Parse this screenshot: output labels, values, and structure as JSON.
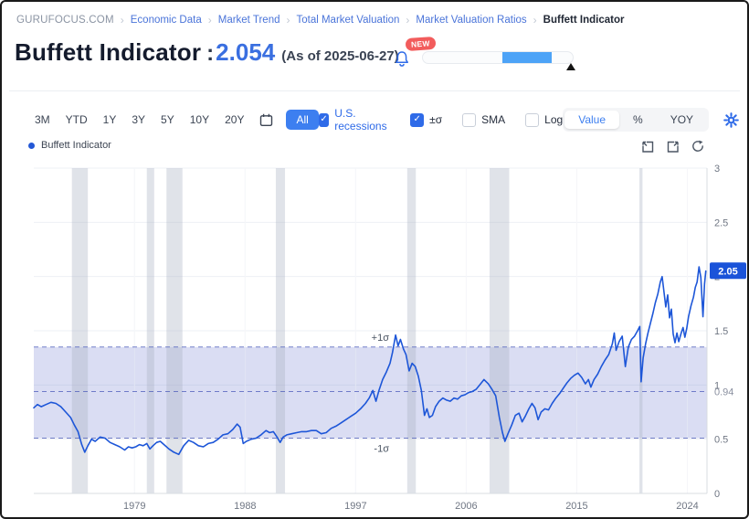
{
  "breadcrumb": {
    "separator": "›",
    "items": [
      {
        "label": "GURUFOCUS.COM"
      },
      {
        "label": "Economic Data"
      },
      {
        "label": "Market Trend"
      },
      {
        "label": "Total Market Valuation"
      },
      {
        "label": "Market Valuation Ratios"
      },
      {
        "label": "Buffett Indicator"
      }
    ]
  },
  "header": {
    "title": "Buffett Indicator",
    "colon": ":",
    "value": "2.054",
    "as_of": "(As of 2025-06-27)",
    "new_badge": "NEW",
    "gauge": {
      "blue_start_pct": 53,
      "blue_end_pct": 86,
      "marker_pct": 95
    }
  },
  "toolbar": {
    "ranges": [
      "3M",
      "YTD",
      "1Y",
      "3Y",
      "5Y",
      "10Y",
      "20Y"
    ],
    "all_label": "All",
    "checkboxes": [
      {
        "label": "U.S. recessions",
        "checked": true
      },
      {
        "label": "±σ",
        "checked": true
      },
      {
        "label": "SMA",
        "checked": false
      },
      {
        "label": "Log",
        "checked": false
      }
    ],
    "modes": [
      {
        "label": "Value",
        "selected": true
      },
      {
        "label": "%",
        "selected": false
      },
      {
        "label": "YOY",
        "selected": false
      }
    ]
  },
  "icons": {
    "check": "✓"
  },
  "legend": {
    "label": "Buffett Indicator",
    "dot_color": "#2458d6"
  },
  "chart_data": {
    "type": "line",
    "title": "Buffett Indicator",
    "x_range": [
      1970.8,
      2025.6
    ],
    "x_ticks": [
      1979,
      1988,
      1997,
      2006,
      2015,
      2024
    ],
    "ylim": [
      0,
      3
    ],
    "y_ticks": [
      0,
      0.5,
      1,
      1.5,
      2,
      2.5,
      3
    ],
    "mean": 0.94,
    "mean_label": "0.94",
    "sigma_plus": 1.35,
    "sigma_minus": 0.51,
    "sigma_labels": {
      "plus": "+1σ",
      "minus": "-1σ"
    },
    "last_value": 2.054,
    "last_value_label": "2.05",
    "grid": true,
    "legend_position": "top-left",
    "recessions": [
      [
        1973.9,
        1975.2
      ],
      [
        1980.0,
        1980.6
      ],
      [
        1981.6,
        1982.9
      ],
      [
        1990.5,
        1991.25
      ],
      [
        2001.2,
        2001.9
      ],
      [
        2007.9,
        2009.5
      ],
      [
        2020.1,
        2020.35
      ]
    ],
    "colors": {
      "line": "#1d56d8",
      "band": "rgba(121,133,213,0.28)",
      "recession": "rgba(167,176,193,0.35)",
      "dashed": "rgba(84,99,189,0.8)",
      "grid": "#eef0f5",
      "axis": "#d8dce2",
      "tick": "#6f7683",
      "sigma_label": "#4b5563",
      "mean_label": "#8a90a0",
      "badge_bg": "#1a53d9",
      "badge_text": "#ffffff"
    },
    "series": [
      {
        "name": "Buffett Indicator",
        "color": "#1d56d8",
        "points": [
          [
            1970.8,
            0.79
          ],
          [
            1971.1,
            0.82
          ],
          [
            1971.4,
            0.8
          ],
          [
            1971.8,
            0.82
          ],
          [
            1972.2,
            0.84
          ],
          [
            1972.6,
            0.83
          ],
          [
            1973.0,
            0.8
          ],
          [
            1973.4,
            0.75
          ],
          [
            1973.8,
            0.7
          ],
          [
            1974.1,
            0.63
          ],
          [
            1974.4,
            0.57
          ],
          [
            1974.7,
            0.45
          ],
          [
            1974.95,
            0.38
          ],
          [
            1975.2,
            0.44
          ],
          [
            1975.5,
            0.5
          ],
          [
            1975.8,
            0.48
          ],
          [
            1976.2,
            0.52
          ],
          [
            1976.6,
            0.51
          ],
          [
            1977.0,
            0.47
          ],
          [
            1977.4,
            0.45
          ],
          [
            1977.8,
            0.43
          ],
          [
            1978.2,
            0.4
          ],
          [
            1978.5,
            0.43
          ],
          [
            1978.8,
            0.42
          ],
          [
            1979.1,
            0.43
          ],
          [
            1979.4,
            0.45
          ],
          [
            1979.7,
            0.44
          ],
          [
            1980.0,
            0.46
          ],
          [
            1980.25,
            0.41
          ],
          [
            1980.5,
            0.44
          ],
          [
            1980.8,
            0.47
          ],
          [
            1981.1,
            0.48
          ],
          [
            1981.4,
            0.45
          ],
          [
            1981.8,
            0.41
          ],
          [
            1982.2,
            0.38
          ],
          [
            1982.6,
            0.36
          ],
          [
            1983.0,
            0.44
          ],
          [
            1983.4,
            0.49
          ],
          [
            1983.8,
            0.47
          ],
          [
            1984.2,
            0.44
          ],
          [
            1984.6,
            0.43
          ],
          [
            1985.0,
            0.46
          ],
          [
            1985.4,
            0.47
          ],
          [
            1985.8,
            0.5
          ],
          [
            1986.2,
            0.54
          ],
          [
            1986.6,
            0.55
          ],
          [
            1987.0,
            0.59
          ],
          [
            1987.35,
            0.64
          ],
          [
            1987.6,
            0.61
          ],
          [
            1987.85,
            0.46
          ],
          [
            1988.1,
            0.48
          ],
          [
            1988.5,
            0.5
          ],
          [
            1988.9,
            0.51
          ],
          [
            1989.3,
            0.54
          ],
          [
            1989.7,
            0.58
          ],
          [
            1990.0,
            0.56
          ],
          [
            1990.3,
            0.57
          ],
          [
            1990.6,
            0.52
          ],
          [
            1990.85,
            0.47
          ],
          [
            1991.1,
            0.52
          ],
          [
            1991.4,
            0.54
          ],
          [
            1991.8,
            0.55
          ],
          [
            1992.2,
            0.56
          ],
          [
            1992.6,
            0.57
          ],
          [
            1993.0,
            0.57
          ],
          [
            1993.4,
            0.58
          ],
          [
            1993.8,
            0.58
          ],
          [
            1994.2,
            0.55
          ],
          [
            1994.6,
            0.56
          ],
          [
            1995.0,
            0.6
          ],
          [
            1995.4,
            0.62
          ],
          [
            1995.8,
            0.65
          ],
          [
            1996.2,
            0.68
          ],
          [
            1996.6,
            0.71
          ],
          [
            1997.0,
            0.74
          ],
          [
            1997.4,
            0.78
          ],
          [
            1997.8,
            0.83
          ],
          [
            1998.1,
            0.88
          ],
          [
            1998.4,
            0.95
          ],
          [
            1998.65,
            0.85
          ],
          [
            1998.9,
            0.95
          ],
          [
            1999.2,
            1.05
          ],
          [
            1999.5,
            1.12
          ],
          [
            1999.8,
            1.2
          ],
          [
            2000.0,
            1.3
          ],
          [
            2000.25,
            1.46
          ],
          [
            2000.45,
            1.36
          ],
          [
            2000.65,
            1.42
          ],
          [
            2000.9,
            1.33
          ],
          [
            2001.1,
            1.28
          ],
          [
            2001.35,
            1.13
          ],
          [
            2001.6,
            1.2
          ],
          [
            2001.85,
            1.17
          ],
          [
            2002.1,
            1.08
          ],
          [
            2002.35,
            0.95
          ],
          [
            2002.6,
            0.72
          ],
          [
            2002.8,
            0.78
          ],
          [
            2003.0,
            0.7
          ],
          [
            2003.25,
            0.72
          ],
          [
            2003.5,
            0.8
          ],
          [
            2003.8,
            0.85
          ],
          [
            2004.1,
            0.88
          ],
          [
            2004.4,
            0.86
          ],
          [
            2004.7,
            0.85
          ],
          [
            2005.0,
            0.88
          ],
          [
            2005.3,
            0.87
          ],
          [
            2005.6,
            0.9
          ],
          [
            2005.9,
            0.91
          ],
          [
            2006.2,
            0.93
          ],
          [
            2006.5,
            0.94
          ],
          [
            2006.8,
            0.96
          ],
          [
            2007.1,
            1.0
          ],
          [
            2007.45,
            1.05
          ],
          [
            2007.8,
            1.01
          ],
          [
            2008.1,
            0.96
          ],
          [
            2008.4,
            0.9
          ],
          [
            2008.7,
            0.7
          ],
          [
            2008.95,
            0.56
          ],
          [
            2009.15,
            0.48
          ],
          [
            2009.4,
            0.55
          ],
          [
            2009.7,
            0.63
          ],
          [
            2010.0,
            0.72
          ],
          [
            2010.3,
            0.74
          ],
          [
            2010.55,
            0.66
          ],
          [
            2010.8,
            0.71
          ],
          [
            2011.1,
            0.78
          ],
          [
            2011.35,
            0.83
          ],
          [
            2011.6,
            0.79
          ],
          [
            2011.85,
            0.68
          ],
          [
            2012.1,
            0.75
          ],
          [
            2012.4,
            0.78
          ],
          [
            2012.7,
            0.77
          ],
          [
            2013.0,
            0.83
          ],
          [
            2013.3,
            0.88
          ],
          [
            2013.6,
            0.92
          ],
          [
            2013.9,
            0.97
          ],
          [
            2014.2,
            1.02
          ],
          [
            2014.5,
            1.06
          ],
          [
            2014.8,
            1.09
          ],
          [
            2015.1,
            1.11
          ],
          [
            2015.4,
            1.07
          ],
          [
            2015.7,
            1.01
          ],
          [
            2015.95,
            1.05
          ],
          [
            2016.15,
            0.98
          ],
          [
            2016.4,
            1.05
          ],
          [
            2016.7,
            1.1
          ],
          [
            2017.0,
            1.17
          ],
          [
            2017.3,
            1.23
          ],
          [
            2017.6,
            1.28
          ],
          [
            2017.9,
            1.38
          ],
          [
            2018.05,
            1.48
          ],
          [
            2018.2,
            1.32
          ],
          [
            2018.45,
            1.4
          ],
          [
            2018.7,
            1.45
          ],
          [
            2018.95,
            1.17
          ],
          [
            2019.2,
            1.35
          ],
          [
            2019.45,
            1.42
          ],
          [
            2019.7,
            1.45
          ],
          [
            2019.95,
            1.5
          ],
          [
            2020.13,
            1.54
          ],
          [
            2020.24,
            1.03
          ],
          [
            2020.4,
            1.25
          ],
          [
            2020.6,
            1.38
          ],
          [
            2020.8,
            1.48
          ],
          [
            2021.0,
            1.57
          ],
          [
            2021.2,
            1.66
          ],
          [
            2021.4,
            1.76
          ],
          [
            2021.6,
            1.84
          ],
          [
            2021.8,
            1.95
          ],
          [
            2021.95,
            2.0
          ],
          [
            2022.1,
            1.86
          ],
          [
            2022.25,
            1.72
          ],
          [
            2022.4,
            1.83
          ],
          [
            2022.55,
            1.62
          ],
          [
            2022.7,
            1.7
          ],
          [
            2022.85,
            1.47
          ],
          [
            2023.0,
            1.39
          ],
          [
            2023.15,
            1.48
          ],
          [
            2023.3,
            1.4
          ],
          [
            2023.5,
            1.48
          ],
          [
            2023.65,
            1.53
          ],
          [
            2023.8,
            1.44
          ],
          [
            2023.95,
            1.52
          ],
          [
            2024.1,
            1.63
          ],
          [
            2024.3,
            1.73
          ],
          [
            2024.5,
            1.81
          ],
          [
            2024.65,
            1.9
          ],
          [
            2024.8,
            1.95
          ],
          [
            2024.95,
            2.09
          ],
          [
            2025.1,
            1.99
          ],
          [
            2025.27,
            1.63
          ],
          [
            2025.4,
            1.93
          ],
          [
            2025.5,
            2.05
          ]
        ]
      }
    ]
  }
}
